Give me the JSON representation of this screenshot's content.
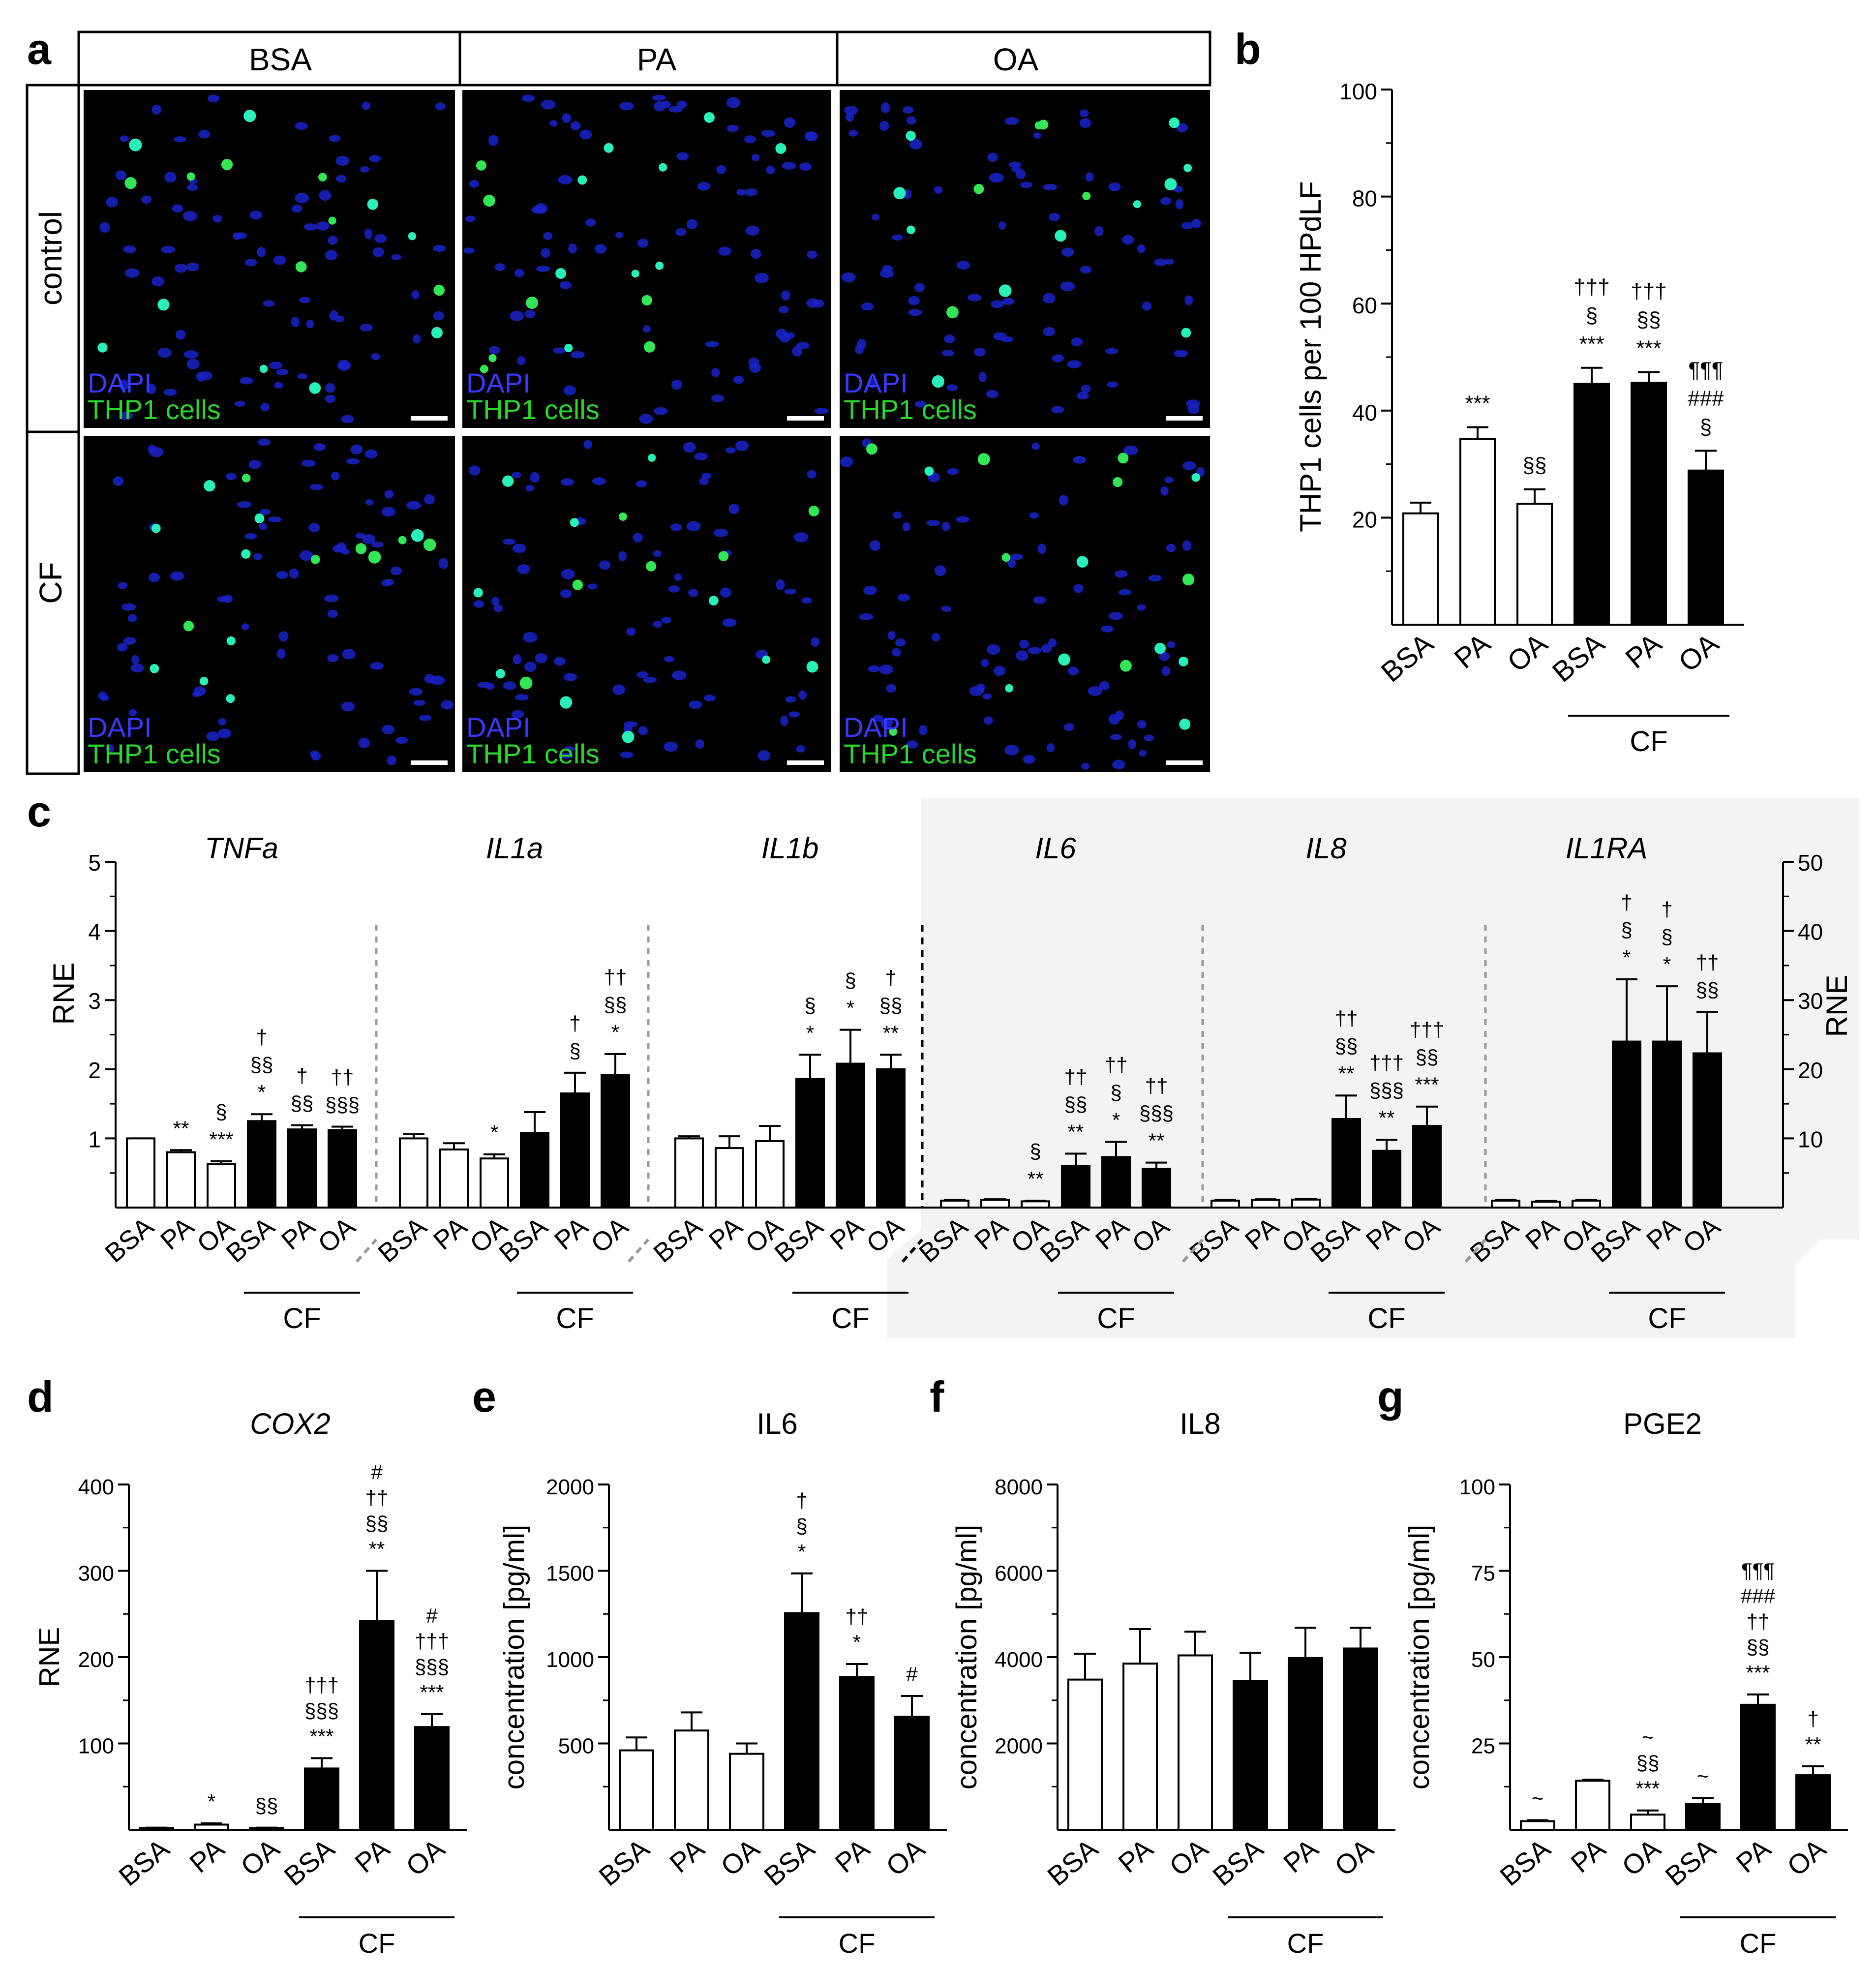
{
  "panel_letters": [
    "a",
    "b",
    "c",
    "d",
    "e",
    "f",
    "g"
  ],
  "panel_a": {
    "columns": [
      "BSA",
      "PA",
      "OA"
    ],
    "rows": [
      "control",
      "CF"
    ],
    "label_dapi": "DAPI",
    "label_thp1": "THP1 cells"
  },
  "chart_data": [
    {
      "id": "b",
      "type": "bar",
      "categories": [
        "BSA",
        "PA",
        "OA",
        "BSA",
        "PA",
        "OA"
      ],
      "group_label": "CF",
      "values": [
        20.8,
        34.7,
        22.6,
        45.0,
        45.2,
        28.8
      ],
      "errors": [
        2.0,
        2.2,
        2.7,
        3.0,
        2.0,
        3.7
      ],
      "ylabel": "THP1 cells per 100 HPdLF",
      "ylim": [
        0,
        100
      ],
      "yticks": [
        "20",
        "40",
        "60",
        "80",
        "100"
      ],
      "annotations": [
        [],
        [
          "***"
        ],
        [
          "§§"
        ],
        [
          "†††",
          "§",
          "***"
        ],
        [
          "†††",
          "§§",
          "***"
        ],
        [
          "¶¶¶",
          "###",
          "§"
        ]
      ]
    },
    {
      "id": "c",
      "type": "bar",
      "ylabel_left": "RNE",
      "ylabel_right": "RNE",
      "ylim_left": [
        0,
        5
      ],
      "ylim_right": [
        0,
        50
      ],
      "yticks_left": [
        "1",
        "2",
        "3",
        "4",
        "5"
      ],
      "yticks_right": [
        "10",
        "20",
        "30",
        "40",
        "50"
      ],
      "group_label": "CF",
      "groups": [
        {
          "title": "TNFa",
          "categories": [
            "BSA",
            "PA",
            "OA",
            "BSA",
            "PA",
            "OA"
          ],
          "values": [
            1.0,
            0.8,
            0.63,
            1.25,
            1.13,
            1.12
          ],
          "errors": [
            0.0,
            0.03,
            0.04,
            0.1,
            0.06,
            0.05
          ],
          "annotations": [
            [],
            [
              "**"
            ],
            [
              "§",
              "***"
            ],
            [
              "†",
              "§§",
              "*"
            ],
            [
              "†",
              "§§"
            ],
            [
              "††",
              "§§§"
            ]
          ]
        },
        {
          "title": "IL1a",
          "categories": [
            "BSA",
            "PA",
            "OA",
            "BSA",
            "PA",
            "OA"
          ],
          "values": [
            1.0,
            0.84,
            0.71,
            1.08,
            1.65,
            1.92
          ],
          "errors": [
            0.06,
            0.09,
            0.06,
            0.3,
            0.3,
            0.3
          ],
          "annotations": [
            [],
            [],
            [
              "*"
            ],
            [],
            [
              "†",
              "§"
            ],
            [
              "††",
              "§§",
              "*"
            ]
          ]
        },
        {
          "title": "IL1b",
          "categories": [
            "BSA",
            "PA",
            "OA",
            "BSA",
            "PA",
            "OA"
          ],
          "values": [
            1.0,
            0.86,
            0.96,
            1.86,
            2.08,
            2.0
          ],
          "errors": [
            0.03,
            0.17,
            0.22,
            0.35,
            0.49,
            0.21
          ],
          "annotations": [
            [],
            [],
            [],
            [
              "§",
              "*"
            ],
            [
              "§",
              "*"
            ],
            [
              "†",
              "§§",
              "**"
            ]
          ]
        },
        {
          "title": "IL6",
          "categories": [
            "BSA",
            "PA",
            "OA",
            "BSA",
            "PA",
            "OA"
          ],
          "values": [
            1.0,
            1.1,
            0.9,
            6.0,
            7.3,
            5.6
          ],
          "errors": [
            0.1,
            0.1,
            0.1,
            1.8,
            2.2,
            0.9
          ],
          "annotations": [
            [],
            [],
            [
              "§",
              "**"
            ],
            [
              "††",
              "§§",
              "**"
            ],
            [
              "††",
              "§",
              "*"
            ],
            [
              "††",
              "§§§",
              "**"
            ]
          ]
        },
        {
          "title": "IL8",
          "categories": [
            "BSA",
            "PA",
            "OA",
            "BSA",
            "PA",
            "OA"
          ],
          "values": [
            1.0,
            1.1,
            1.15,
            12.8,
            8.2,
            11.8
          ],
          "errors": [
            0.1,
            0.1,
            0.1,
            3.4,
            1.6,
            2.8
          ],
          "annotations": [
            [],
            [],
            [],
            [
              "††",
              "§§",
              "**"
            ],
            [
              "†††",
              "§§§",
              "**"
            ],
            [
              "†††",
              "§§",
              "***"
            ]
          ]
        },
        {
          "title": "IL1RA",
          "categories": [
            "BSA",
            "PA",
            "OA",
            "BSA",
            "PA",
            "OA"
          ],
          "values": [
            1.0,
            0.85,
            1.0,
            24.0,
            24.0,
            22.3
          ],
          "errors": [
            0.1,
            0.1,
            0.1,
            9.0,
            8.0,
            6.0
          ],
          "annotations": [
            [],
            [],
            [],
            [
              "†",
              "§",
              "*"
            ],
            [
              "†",
              "§",
              "*"
            ],
            [
              "††",
              "§§"
            ]
          ]
        }
      ]
    },
    {
      "id": "d",
      "type": "bar",
      "title": "COX2",
      "categories": [
        "BSA",
        "PA",
        "OA",
        "BSA",
        "PA",
        "OA"
      ],
      "group_label": "CF",
      "values": [
        2,
        6,
        2,
        71,
        242,
        119
      ],
      "errors": [
        0.5,
        1.5,
        0.5,
        12,
        58,
        15
      ],
      "ylabel": "RNE",
      "ylim": [
        0,
        400
      ],
      "yticks": [
        "100",
        "200",
        "300",
        "400"
      ],
      "annotations": [
        [],
        [
          "*"
        ],
        [
          "§§"
        ],
        [
          "†††",
          "§§§",
          "***"
        ],
        [
          "#",
          "††",
          "§§",
          "**"
        ],
        [
          "#",
          "†††",
          "§§§",
          "***"
        ]
      ]
    },
    {
      "id": "e",
      "type": "bar",
      "title": "IL6",
      "categories": [
        "BSA",
        "PA",
        "OA",
        "BSA",
        "PA",
        "OA"
      ],
      "group_label": "CF",
      "values": [
        460,
        575,
        440,
        1255,
        885,
        655
      ],
      "errors": [
        75,
        105,
        60,
        230,
        75,
        120
      ],
      "ylabel": "concentration [pg/ml]",
      "ylim": [
        0,
        2000
      ],
      "yticks": [
        "500",
        "1000",
        "1500",
        "2000"
      ],
      "annotations": [
        [],
        [],
        [],
        [
          "†",
          "§",
          "*"
        ],
        [
          "††",
          "*"
        ],
        [
          "#"
        ]
      ]
    },
    {
      "id": "f",
      "type": "bar",
      "title": "IL8",
      "categories": [
        "BSA",
        "PA",
        "OA",
        "BSA",
        "PA",
        "OA"
      ],
      "group_label": "CF",
      "values": [
        3480,
        3850,
        4040,
        3450,
        3980,
        4200
      ],
      "errors": [
        600,
        800,
        550,
        650,
        700,
        480
      ],
      "ylabel": "concentration [pg/ml]",
      "ylim": [
        0,
        8000
      ],
      "yticks": [
        "2000",
        "4000",
        "6000",
        "8000"
      ],
      "annotations": [
        [],
        [],
        [],
        [],
        [],
        []
      ]
    },
    {
      "id": "g",
      "type": "bar",
      "title": "PGE2",
      "categories": [
        "BSA",
        "PA",
        "OA",
        "BSA",
        "PA",
        "OA"
      ],
      "group_label": "CF",
      "values": [
        2.5,
        14.2,
        4.4,
        7.5,
        36.2,
        15.8
      ],
      "errors": [
        0.3,
        0.3,
        1.2,
        1.7,
        3.0,
        2.6
      ],
      "ylabel": "concentration [pg/ml]",
      "ylim": [
        0,
        100
      ],
      "yticks": [
        "25",
        "50",
        "75",
        "100"
      ],
      "annotations": [
        [
          "~"
        ],
        [],
        [
          "~",
          "§§",
          "***"
        ],
        [
          "~"
        ],
        [
          "¶¶¶",
          "###",
          "††",
          "§§",
          "***"
        ],
        [
          "†",
          "**"
        ]
      ]
    }
  ]
}
